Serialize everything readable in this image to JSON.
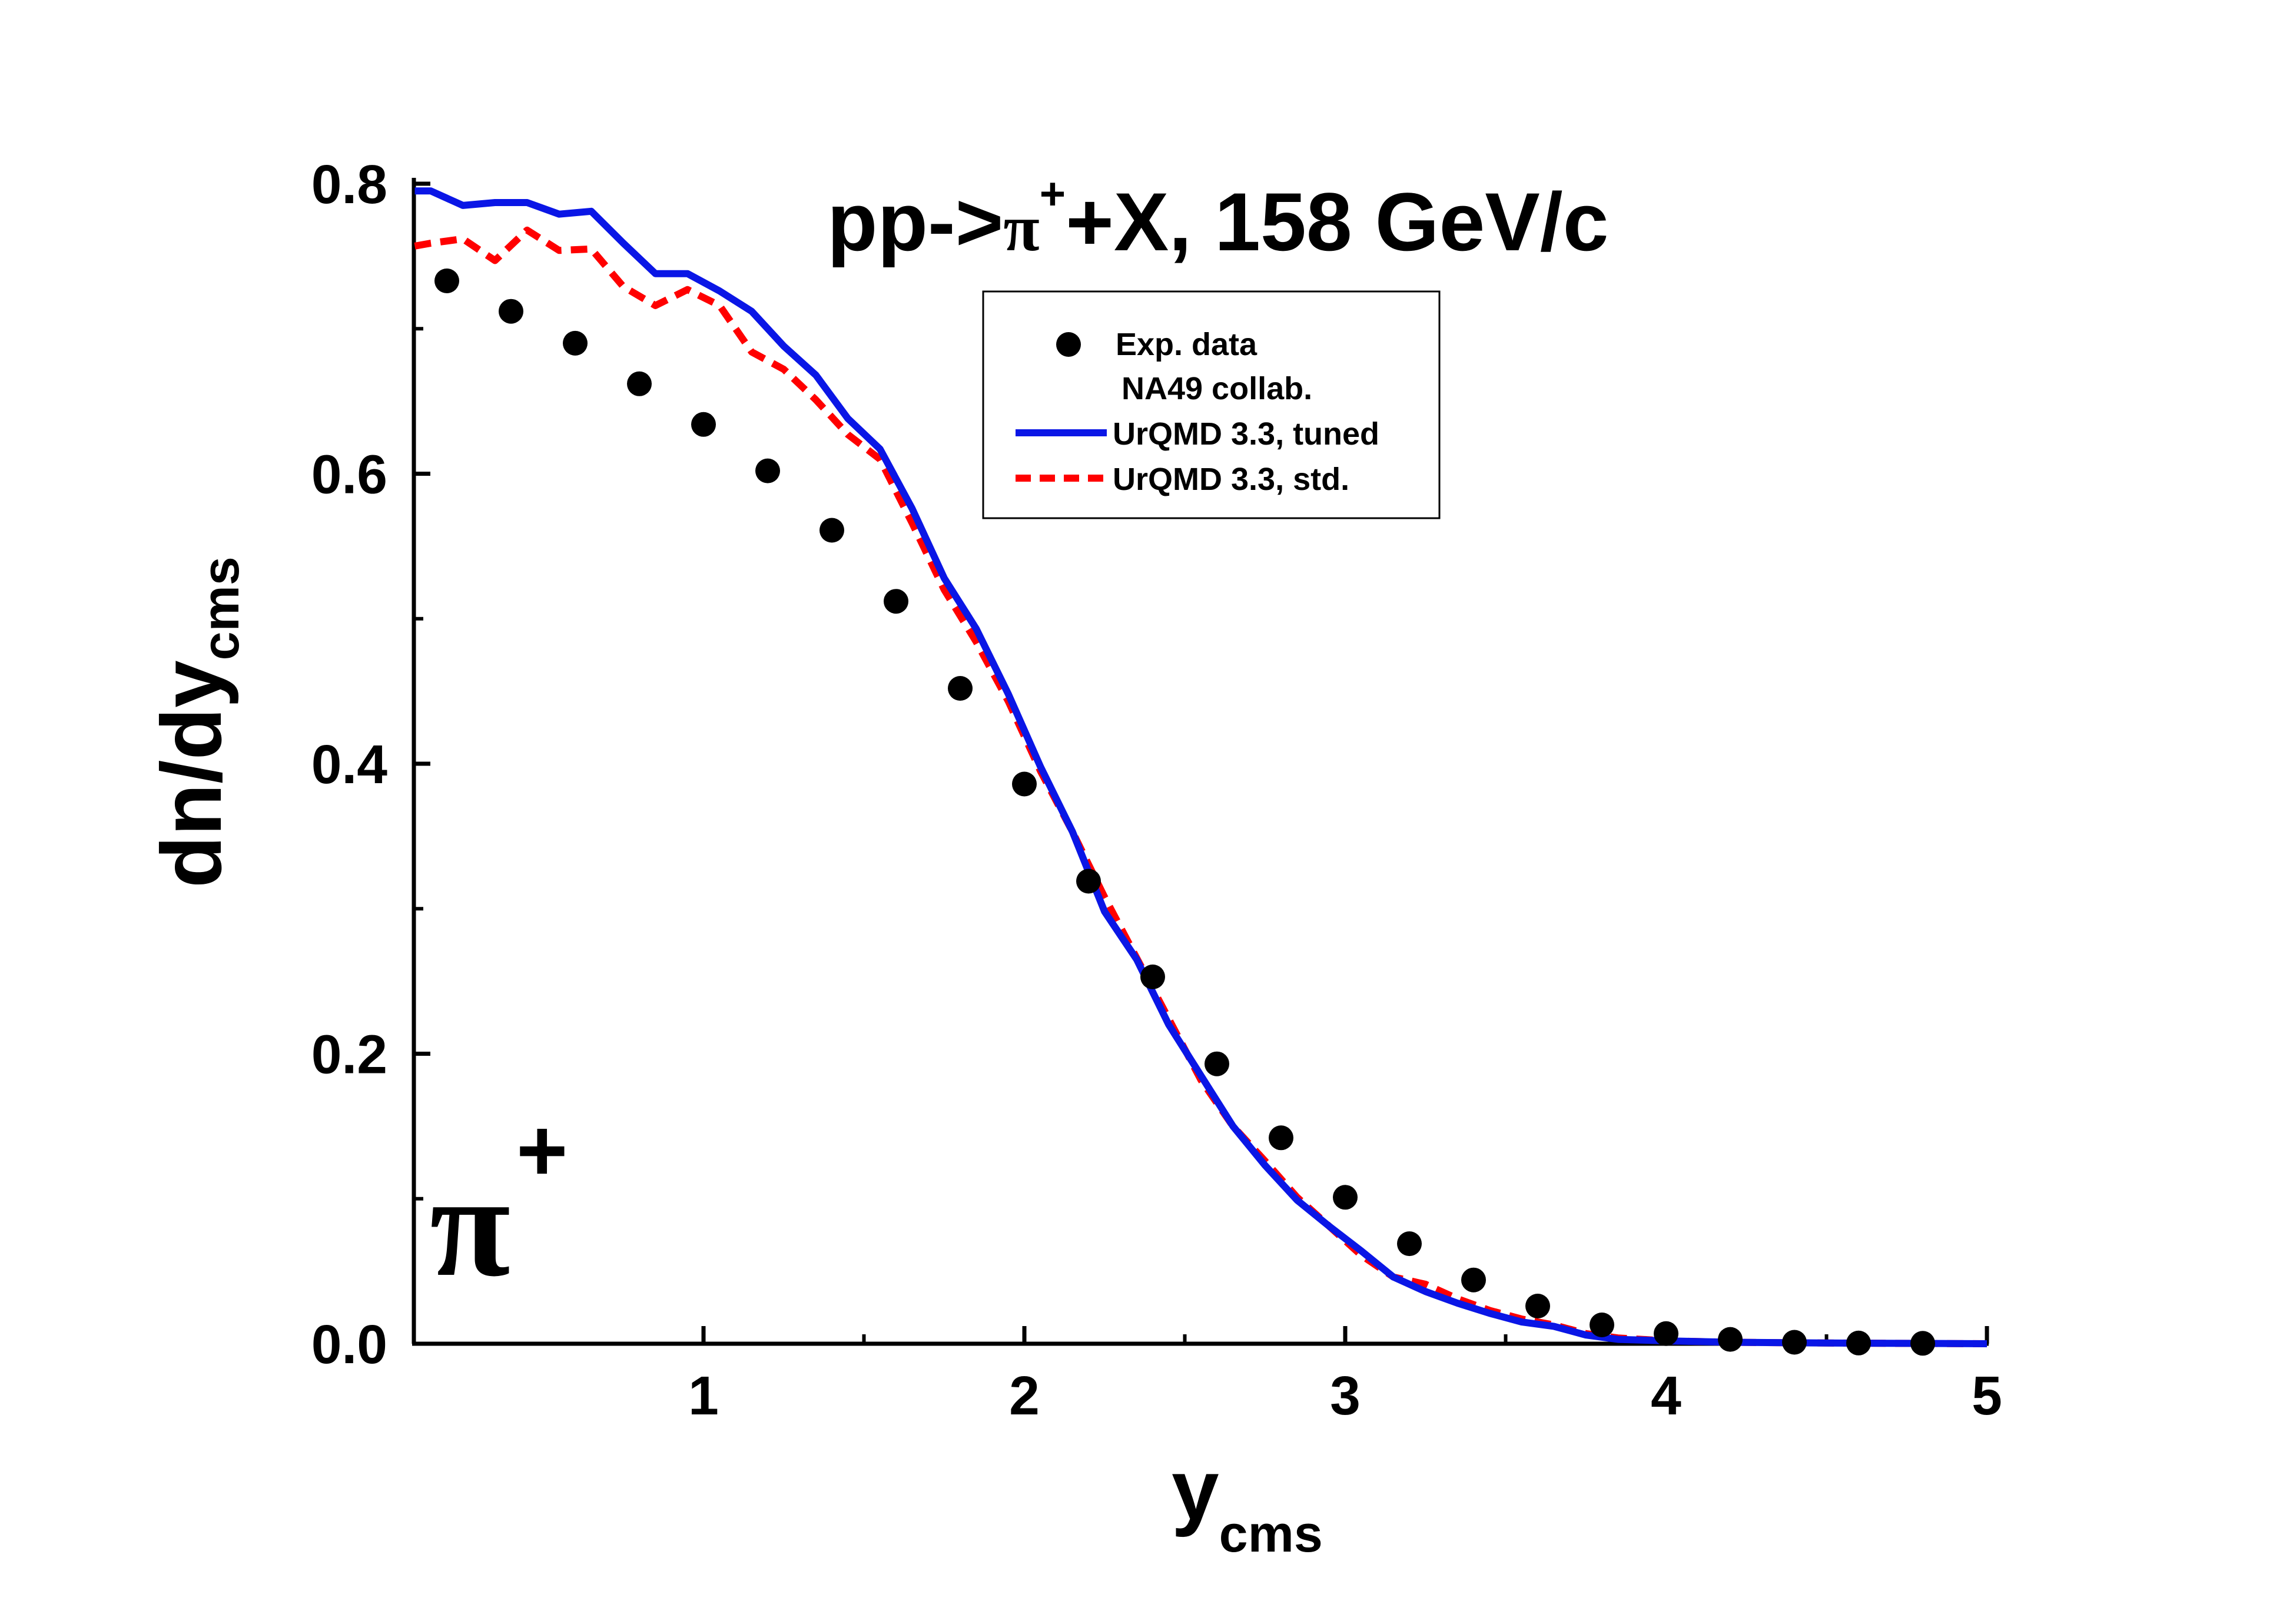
{
  "chart_data": {
    "type": "line",
    "title": {
      "prefix": "pp->",
      "particle": "π",
      "charge": "+",
      "suffix": "+X, 158 GeV/c"
    },
    "xlabel": {
      "main": "y",
      "sub": "cms"
    },
    "ylabel": {
      "main": "dn/dy",
      "sub": "cms"
    },
    "xlim": [
      0.1,
      5.0
    ],
    "ylim": [
      0.0,
      0.8
    ],
    "x_ticks": [
      1,
      2,
      3,
      4,
      5
    ],
    "x_tick_labels": [
      "1",
      "2",
      "3",
      "4",
      "5"
    ],
    "x_minor_ticks": [
      1.5,
      2.5,
      3.5,
      4.5
    ],
    "y_ticks": [
      0.0,
      0.2,
      0.4,
      0.6,
      0.8
    ],
    "y_tick_labels": [
      "0.0",
      "0.2",
      "0.4",
      "0.6",
      "0.8"
    ],
    "y_minor_ticks": [
      0.1,
      0.3,
      0.5,
      0.7
    ],
    "legend_position": "top-center",
    "annotation": {
      "symbol": "π",
      "charge": "+",
      "position": "bottom-left"
    },
    "series": [
      {
        "name": "Exp. data",
        "name_line2": "NA49 collab.",
        "kind": "scatter",
        "color": "#000000",
        "x": [
          0.2,
          0.4,
          0.6,
          0.8,
          1.0,
          1.2,
          1.4,
          1.6,
          1.8,
          2.0,
          2.2,
          2.4,
          2.6,
          2.8,
          3.0,
          3.2,
          3.4,
          3.6,
          3.8,
          4.0,
          4.2,
          4.4,
          4.6,
          4.8
        ],
        "y": [
          0.733,
          0.712,
          0.69,
          0.662,
          0.634,
          0.602,
          0.561,
          0.512,
          0.452,
          0.386,
          0.319,
          0.253,
          0.193,
          0.142,
          0.101,
          0.069,
          0.044,
          0.026,
          0.013,
          0.007,
          0.003,
          0.001,
          0.0005,
          0.0003
        ]
      },
      {
        "name": "UrQMD 3.3, tuned",
        "kind": "line",
        "style": "solid",
        "color": "#0a16e6",
        "x": [
          0.1,
          0.15,
          0.25,
          0.35,
          0.45,
          0.55,
          0.65,
          0.75,
          0.85,
          0.95,
          1.05,
          1.15,
          1.25,
          1.35,
          1.45,
          1.55,
          1.65,
          1.75,
          1.85,
          1.95,
          2.05,
          2.15,
          2.25,
          2.35,
          2.45,
          2.55,
          2.65,
          2.75,
          2.85,
          2.95,
          3.05,
          3.15,
          3.25,
          3.35,
          3.45,
          3.55,
          3.65,
          3.75,
          3.85,
          4.0,
          4.2,
          4.5,
          5.0
        ],
        "y": [
          0.795,
          0.795,
          0.785,
          0.787,
          0.787,
          0.779,
          0.781,
          0.759,
          0.738,
          0.738,
          0.726,
          0.712,
          0.688,
          0.668,
          0.638,
          0.617,
          0.576,
          0.528,
          0.493,
          0.448,
          0.398,
          0.353,
          0.298,
          0.265,
          0.22,
          0.185,
          0.15,
          0.123,
          0.099,
          0.081,
          0.064,
          0.046,
          0.036,
          0.028,
          0.021,
          0.015,
          0.012,
          0.006,
          0.003,
          0.002,
          0.001,
          0.0005,
          0.0
        ]
      },
      {
        "name": "UrQMD 3.3, std.",
        "kind": "line",
        "style": "dashed",
        "color": "#ff0000",
        "x": [
          0.1,
          0.15,
          0.25,
          0.35,
          0.45,
          0.55,
          0.65,
          0.75,
          0.85,
          0.95,
          1.05,
          1.15,
          1.25,
          1.35,
          1.45,
          1.55,
          1.65,
          1.75,
          1.85,
          1.95,
          2.05,
          2.15,
          2.25,
          2.35,
          2.45,
          2.55,
          2.65,
          2.75,
          2.85,
          2.95,
          3.05,
          3.15,
          3.25,
          3.35,
          3.45,
          3.55,
          3.65,
          3.75,
          3.85,
          4.0,
          4.2,
          4.5,
          5.0
        ],
        "y": [
          0.757,
          0.759,
          0.762,
          0.747,
          0.768,
          0.754,
          0.755,
          0.729,
          0.716,
          0.727,
          0.716,
          0.684,
          0.672,
          0.651,
          0.627,
          0.61,
          0.566,
          0.52,
          0.484,
          0.443,
          0.395,
          0.353,
          0.308,
          0.266,
          0.224,
          0.182,
          0.15,
          0.126,
          0.101,
          0.081,
          0.061,
          0.046,
          0.041,
          0.031,
          0.023,
          0.017,
          0.013,
          0.007,
          0.004,
          0.002,
          0.001,
          0.0005,
          0.0
        ]
      }
    ]
  }
}
